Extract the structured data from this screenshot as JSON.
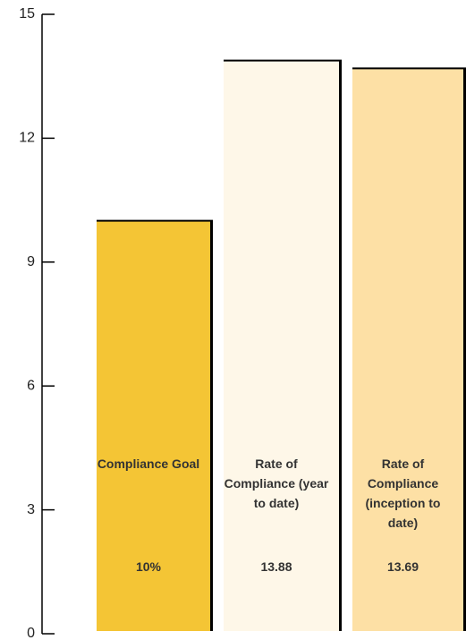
{
  "chart_data": {
    "type": "bar",
    "categories": [
      "Compliance Goal",
      "Rate of Compliance (year to date)",
      "Rate of Compliance (inception to date)"
    ],
    "values": [
      10,
      13.88,
      13.69
    ],
    "value_labels": [
      "10%",
      "13.88",
      "13.69"
    ],
    "colors": [
      "#f4c535",
      "#fef7e8",
      "#fde0a5"
    ],
    "ylim": [
      0,
      15
    ],
    "yticks": [
      0,
      3,
      6,
      9,
      12,
      15
    ],
    "grid": false
  }
}
